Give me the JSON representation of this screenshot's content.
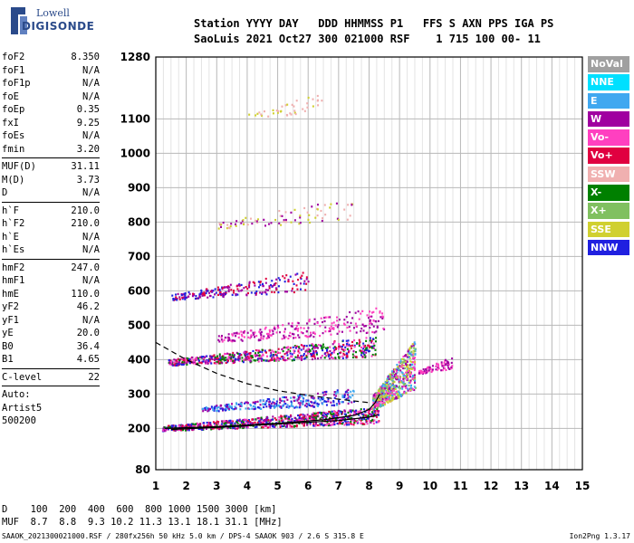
{
  "brand": {
    "line1": "Lowell",
    "line2": "DIGISONDE"
  },
  "header": {
    "line1": "Station YYYY DAY   DDD HHMMSS P1   FFS S AXN PPS IGA PS",
    "line2": "SaoLuis 2021 Oct27 300 021000 RSF    1 715 100 00- 11"
  },
  "params": [
    {
      "name": "foF2",
      "value": "8.350"
    },
    {
      "name": "foF1",
      "value": "N/A"
    },
    {
      "name": "foF1p",
      "value": "N/A"
    },
    {
      "name": "foE",
      "value": "N/A"
    },
    {
      "name": "foEp",
      "value": "0.35"
    },
    {
      "name": "fxI",
      "value": "9.25"
    },
    {
      "name": "foEs",
      "value": "N/A"
    },
    {
      "name": "fmin",
      "value": "3.20"
    },
    {
      "sep": true
    },
    {
      "name": "MUF(D)",
      "value": "31.11"
    },
    {
      "name": "M(D)",
      "value": "3.73"
    },
    {
      "name": "D",
      "value": "N/A"
    },
    {
      "sep": true
    },
    {
      "name": "h`F",
      "value": "210.0"
    },
    {
      "name": "h`F2",
      "value": "210.0"
    },
    {
      "name": "h`E",
      "value": "N/A"
    },
    {
      "name": "h`Es",
      "value": "N/A"
    },
    {
      "sep": true
    },
    {
      "name": "hmF2",
      "value": "247.0"
    },
    {
      "name": "hmF1",
      "value": "N/A"
    },
    {
      "name": "hmE",
      "value": "110.0"
    },
    {
      "name": "yF2",
      "value": "46.2"
    },
    {
      "name": "yF1",
      "value": "N/A"
    },
    {
      "name": "yE",
      "value": "20.0"
    },
    {
      "name": "B0",
      "value": "36.4"
    },
    {
      "name": "B1",
      "value": "4.65"
    },
    {
      "sep": true
    },
    {
      "name": "C-level",
      "value": "22"
    },
    {
      "sep": true
    },
    {
      "text": "Auto:"
    },
    {
      "text": "Artist5"
    },
    {
      "text": "500200"
    }
  ],
  "legend": [
    {
      "label": "NoVal",
      "color": "#a0a0a0"
    },
    {
      "label": "NNE",
      "color": "#00e0ff"
    },
    {
      "label": "E",
      "color": "#40a8f0"
    },
    {
      "label": "W",
      "color": "#a000a0"
    },
    {
      "label": "Vo-",
      "color": "#ff40c0"
    },
    {
      "label": "Vo+",
      "color": "#e00040"
    },
    {
      "label": "SSW",
      "color": "#f0b0b0"
    },
    {
      "label": "X-",
      "color": "#008000"
    },
    {
      "label": "X+",
      "color": "#80c060"
    },
    {
      "label": "SSE",
      "color": "#d0d030"
    },
    {
      "label": "NNW",
      "color": "#2020e0"
    }
  ],
  "bottom": {
    "d_line": "D    100  200  400  600  800 1000 1500 3000 [km]",
    "muf_line": "MUF  8.7  8.8  9.3 10.2 11.3 13.1 18.1 31.1 [MHz]",
    "footer_left": "SAAOK_2021300021000.RSF / 280fx256h 50 kHz 5.0 km / DPS-4 SAAOK 903 / 2.6 S 315.8 E",
    "footer_right": "Ion2Png 1.3.17"
  },
  "chart_data": {
    "type": "scatter",
    "x": {
      "range": [
        1,
        15
      ],
      "ticks": [
        "1",
        "2",
        "3",
        "4",
        "5",
        "6",
        "7",
        "8",
        "9",
        "10",
        "11",
        "12",
        "13",
        "14",
        "15"
      ],
      "unit": "MHz"
    },
    "y": {
      "range": [
        80,
        1280
      ],
      "ticks": [
        "80",
        "200",
        "300",
        "400",
        "500",
        "600",
        "700",
        "800",
        "900",
        "1000",
        "1100",
        "1280"
      ],
      "unit": "km"
    },
    "grid": true,
    "clusters": [
      {
        "f": [
          1.2,
          8.3
        ],
        "h": [
          195,
          265
        ],
        "density": 900,
        "colors": [
          "#2020e0",
          "#a000a0",
          "#ff40c0",
          "#e00040",
          "#008000"
        ]
      },
      {
        "f": [
          2.5,
          7.5
        ],
        "h": [
          250,
          320
        ],
        "density": 300,
        "colors": [
          "#2020e0",
          "#a000a0",
          "#40a8f0"
        ]
      },
      {
        "f": [
          1.4,
          8.2
        ],
        "h": [
          385,
          470
        ],
        "density": 650,
        "colors": [
          "#e00040",
          "#ff40c0",
          "#a000a0",
          "#2020e0",
          "#008000"
        ]
      },
      {
        "f": [
          3.0,
          8.5
        ],
        "h": [
          450,
          560
        ],
        "density": 250,
        "colors": [
          "#a000a0",
          "#ff40c0"
        ]
      },
      {
        "f": [
          1.5,
          6.0
        ],
        "h": [
          575,
          660
        ],
        "density": 220,
        "colors": [
          "#a000a0",
          "#2020e0",
          "#e00040"
        ]
      },
      {
        "f": [
          8.1,
          9.5
        ],
        "h": [
          255,
          460
        ],
        "density": 600,
        "colors": [
          "#ff40c0",
          "#a000a0",
          "#40a8f0",
          "#d0d030",
          "#80c060"
        ]
      },
      {
        "f": [
          9.6,
          10.7
        ],
        "h": [
          360,
          410
        ],
        "density": 80,
        "colors": [
          "#a000a0",
          "#ff40c0"
        ]
      },
      {
        "f": [
          3.0,
          7.5
        ],
        "h": [
          780,
          880
        ],
        "density": 80,
        "colors": [
          "#d0d030",
          "#a000a0",
          "#f0b0b0"
        ]
      },
      {
        "f": [
          4.0,
          6.5
        ],
        "h": [
          1100,
          1180
        ],
        "density": 40,
        "colors": [
          "#d0d030",
          "#f0b0b0"
        ]
      }
    ],
    "traces": [
      {
        "name": "ordinary",
        "x": [
          1.3,
          3.0,
          5.0,
          6.5,
          7.5,
          8.0,
          8.2,
          8.35
        ],
        "y": [
          200,
          205,
          215,
          225,
          238,
          255,
          275,
          300
        ]
      },
      {
        "name": "extraordinary",
        "x": [
          1.5,
          3.0,
          5.0,
          7.0,
          8.0,
          8.3
        ],
        "y": [
          197,
          203,
          213,
          223,
          233,
          240
        ]
      },
      {
        "name": "profile",
        "x": [
          1.0,
          2.0,
          3.0,
          4.0,
          5.0,
          6.0,
          7.0,
          8.0
        ],
        "y": [
          450,
          400,
          360,
          330,
          310,
          296,
          285,
          275
        ]
      }
    ]
  }
}
